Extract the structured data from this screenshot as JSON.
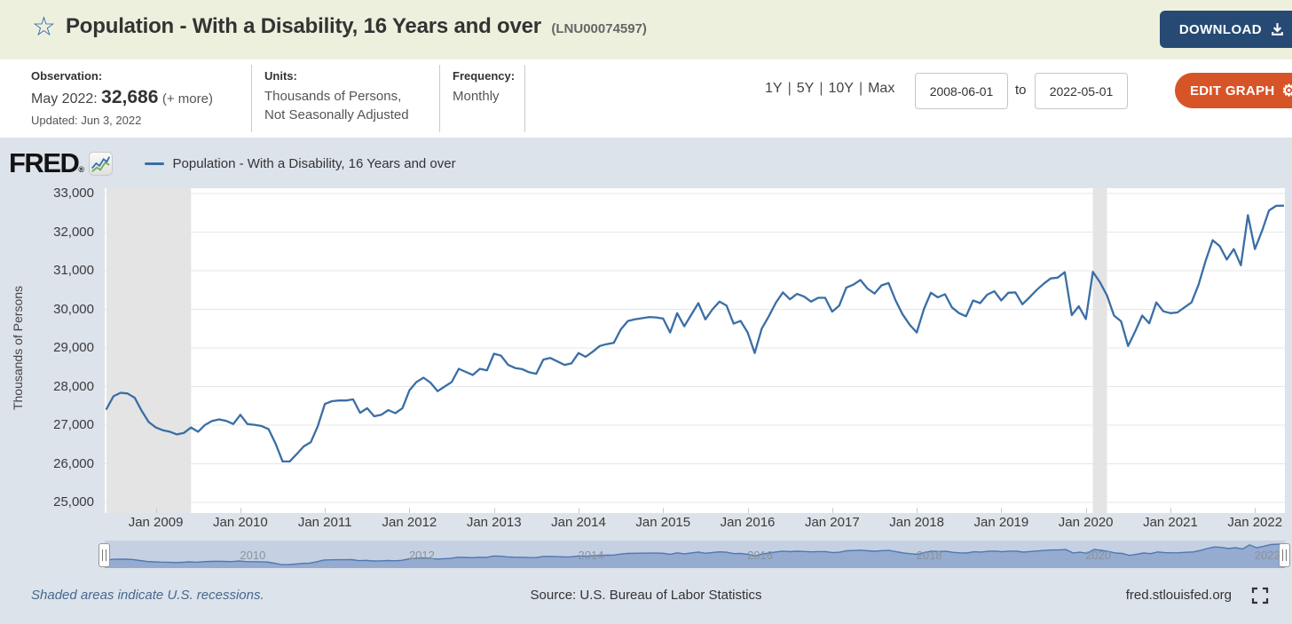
{
  "header": {
    "star_icon": "star-outline",
    "title": "Population - With a Disability, 16 Years and over",
    "series_id": "(LNU00074597)",
    "download_label": "DOWNLOAD",
    "download_icon": "download-icon"
  },
  "meta": {
    "observation_label": "Observation:",
    "observation_period": "May 2022:",
    "observation_value": "32,686",
    "observation_more": "(+ more)",
    "updated": "Updated: Jun 3, 2022",
    "units_label": "Units:",
    "units_line1": "Thousands of Persons,",
    "units_line2": "Not Seasonally Adjusted",
    "frequency_label": "Frequency:",
    "frequency_value": "Monthly"
  },
  "controls": {
    "ranges": [
      "1Y",
      "5Y",
      "10Y",
      "Max"
    ],
    "range_separator": "|",
    "date_from": "2008-06-01",
    "to_label": "to",
    "date_to": "2022-05-01",
    "edit_graph_label": "EDIT GRAPH",
    "gear_icon": "⚙"
  },
  "branding": {
    "logo_text": "FRED",
    "logo_reg": "®",
    "logo_chart_icon": "fred-sparkline-icon"
  },
  "legend": {
    "series_label": "Population - With a Disability, 16 Years and over"
  },
  "footer": {
    "recession_note": "Shaded areas indicate U.S. recessions.",
    "source": "Source: U.S. Bureau of Labor Statistics",
    "site": "fred.stlouisfed.org",
    "fullscreen_icon": "fullscreen-icon"
  },
  "colors": {
    "header_bg": "#eef0de",
    "page_bg": "#dde3eb",
    "plot_bg": "#ffffff",
    "line_blue": "#3a6ea5",
    "recession_gray": "#e4e4e4",
    "gridline": "#e7e7e7",
    "download_navy": "#264a73",
    "edit_orange": "#d75428",
    "nav_track": "#c5d0e3",
    "nav_fill": "#95abd0",
    "nav_line": "#4e79b2"
  },
  "chart_data": {
    "type": "line",
    "title": "Population - With a Disability, 16 Years and over",
    "ylabel": "Thousands of Persons",
    "units": "Thousands of Persons, Not Seasonally Adjusted",
    "frequency": "Monthly",
    "start_month": "2008-06",
    "end_month": "2022-05",
    "ylim": [
      25000,
      33000
    ],
    "y_ticks": [
      25000,
      26000,
      27000,
      28000,
      29000,
      30000,
      31000,
      32000,
      33000
    ],
    "x_ticks": [
      "Jan 2009",
      "Jan 2010",
      "Jan 2011",
      "Jan 2012",
      "Jan 2013",
      "Jan 2014",
      "Jan 2015",
      "Jan 2016",
      "Jan 2017",
      "Jan 2018",
      "Jan 2019",
      "Jan 2020",
      "Jan 2021",
      "Jan 2022"
    ],
    "grid": true,
    "legend_position": "top-left",
    "recessions": [
      {
        "start": "2008-06",
        "end": "2009-06"
      },
      {
        "start": "2020-02",
        "end": "2020-04"
      }
    ],
    "navigator_years": [
      "2010",
      "2012",
      "2014",
      "2016",
      "2018",
      "2020",
      "2022"
    ],
    "series": [
      {
        "name": "Population - With a Disability, 16 Years and over",
        "color": "#3a6ea5",
        "values": [
          27420,
          27750,
          27840,
          27820,
          27710,
          27370,
          27080,
          26940,
          26870,
          26830,
          26760,
          26800,
          26940,
          26830,
          27010,
          27110,
          27150,
          27110,
          27030,
          27270,
          27030,
          27010,
          26980,
          26900,
          26520,
          26060,
          26060,
          26250,
          26450,
          26560,
          26980,
          27550,
          27620,
          27640,
          27640,
          27670,
          27320,
          27440,
          27230,
          27270,
          27390,
          27310,
          27440,
          27900,
          28120,
          28230,
          28100,
          27880,
          28000,
          28120,
          28460,
          28380,
          28300,
          28460,
          28420,
          28850,
          28800,
          28560,
          28480,
          28450,
          28370,
          28330,
          28700,
          28740,
          28650,
          28560,
          28600,
          28870,
          28770,
          28900,
          29050,
          29100,
          29130,
          29480,
          29700,
          29740,
          29770,
          29800,
          29790,
          29760,
          29400,
          29900,
          29560,
          29860,
          30160,
          29740,
          30000,
          30200,
          30100,
          29630,
          29700,
          29400,
          28870,
          29500,
          29820,
          30170,
          30440,
          30260,
          30400,
          30330,
          30200,
          30300,
          30300,
          29940,
          30100,
          30560,
          30640,
          30760,
          30540,
          30410,
          30620,
          30680,
          30230,
          29870,
          29600,
          29400,
          30000,
          30430,
          30310,
          30390,
          30050,
          29900,
          29820,
          30230,
          30160,
          30380,
          30470,
          30230,
          30430,
          30440,
          30130,
          30310,
          30500,
          30660,
          30800,
          30820,
          30960,
          29850,
          30080,
          29750,
          30970,
          30700,
          30360,
          29840,
          29690,
          29050,
          29430,
          29840,
          29640,
          30180,
          29950,
          29900,
          29920,
          30050,
          30180,
          30640,
          31260,
          31790,
          31640,
          31290,
          31560,
          31140,
          32440,
          31560,
          32030,
          32560,
          32680,
          32686
        ]
      }
    ]
  }
}
